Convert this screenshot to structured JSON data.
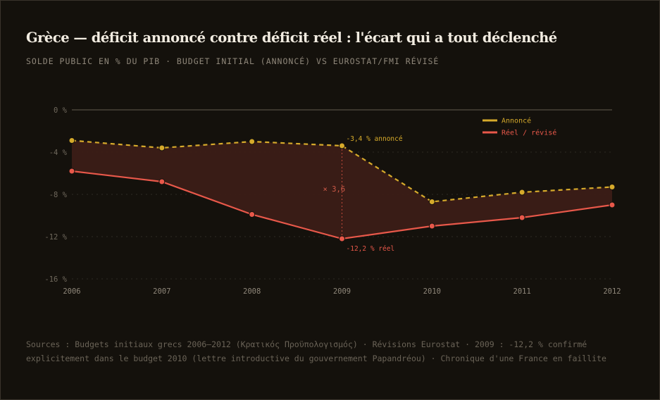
{
  "chart_data": {
    "type": "line",
    "title": "Grèce — déficit annoncé contre déficit réel : l'écart qui a tout déclenché",
    "subtitle": "SOLDE PUBLIC EN % DU PIB · BUDGET INITIAL (ANNONCÉ) VS EUROSTAT/FMI RÉVISÉ",
    "xlabel": "",
    "ylabel": "",
    "categories": [
      "2006",
      "2007",
      "2008",
      "2009",
      "2010",
      "2011",
      "2012"
    ],
    "ylim": [
      -16,
      0
    ],
    "yticks": [
      0,
      -4,
      -8,
      -12,
      -16
    ],
    "ytick_labels": [
      "0 %",
      "-4 %",
      "-8 %",
      "-12 %",
      "-16 %"
    ],
    "grid": true,
    "legend_position": "top-right",
    "series": [
      {
        "name": "Annoncé",
        "style": "dashed",
        "color": "#d6aa2b",
        "values": [
          -2.9,
          -3.6,
          -3.0,
          -3.4,
          -8.7,
          -7.8,
          -7.3
        ]
      },
      {
        "name": "Réel / révisé",
        "style": "solid",
        "color": "#e8584a",
        "values": [
          -5.8,
          -6.8,
          -9.9,
          -12.2,
          -11.0,
          -10.2,
          -9.0
        ]
      }
    ],
    "annotations": {
      "announced_2009": "-3,4 % annoncé",
      "real_2009": "-12,2 % réel",
      "gap": "× 3,6"
    }
  },
  "source": "Sources : Budgets initiaux grecs 2006–2012 (Κρατικός Προϋπολογισμός) · Révisions Eurostat · 2009 : -12,2 % confirmé explicitement dans le budget 2010 (lettre introductive du gouvernement Papandréou) · Chronique d'une France en faillite"
}
